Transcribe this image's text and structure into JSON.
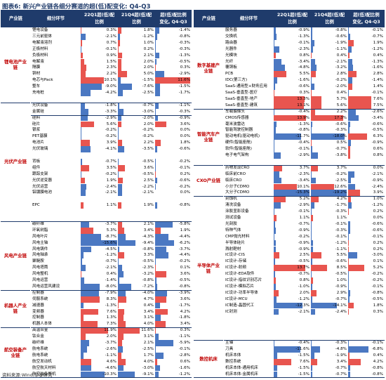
{
  "title": "图表6:  新兴产业链各细分赛道的超(低)配变化: Q4-Q3",
  "source": "资料来源:Wind,华泰研究",
  "headers": {
    "industry_chain": "产业链",
    "segment": "细分环节",
    "q22_1": "22Q1超(低)配",
    "q22_2": "比例",
    "q21_1": "21Q4超(低)配",
    "q21_2": "比例",
    "chg_1": "超(低)配比例",
    "chg_2": "变化, Q4-Q3"
  },
  "colors": {
    "header_bg": "#1f3b6b",
    "group_label": "#c00000",
    "positive_bar": "#e8554f",
    "negative_bar": "#4b78c2"
  },
  "left": {
    "groups": [
      {
        "name": "锂电池产业链",
        "start": 0,
        "count": 12
      },
      {
        "name": "光伏产业链",
        "start": 12,
        "count": 19
      },
      {
        "name": "风电产业链",
        "start": 31,
        "count": 11
      },
      {
        "name": "机器人产业链",
        "start": 42,
        "count": 6
      },
      {
        "name": "航空装备产业链",
        "start": 48,
        "count": 8
      }
    ],
    "separators_after": [
      11,
      13,
      30,
      41,
      47
    ],
    "rows": [
      {
        "n": "锂电设备",
        "a": "0.3%",
        "b": "1.8%",
        "c": "-1.4%"
      },
      {
        "n": "三元前驱体",
        "a": "-2.1%",
        "b": "-1.2%",
        "c": "-0.8%"
      },
      {
        "n": "电解液溶剂",
        "a": "0.7%",
        "b": "1.0%",
        "c": "-0.3%"
      },
      {
        "n": "正极材料",
        "a": "-0.1%",
        "b": "0.2%",
        "c": "-0.3%"
      },
      {
        "n": "负极材料",
        "a": "0.9%",
        "b": "2.1%",
        "c": "-1.3%"
      },
      {
        "n": "电解液",
        "a": "1.5%",
        "b": "2.0%",
        "c": "-0.5%"
      },
      {
        "n": "隔膜",
        "a": "2.3%",
        "b": "2.0%",
        "c": "0.3%"
      },
      {
        "n": "铜材",
        "a": "2.2%",
        "b": "5.0%",
        "c": "-2.9%"
      },
      {
        "n": "电芯与Pack",
        "a": "10.1%",
        "b": "-1.5%",
        "c": "11.6%"
      },
      {
        "n": "整车",
        "a": "-9.0%",
        "b": "-7.6%",
        "c": "-1.5%"
      },
      {
        "n": "充电桩",
        "a": "-4.2%",
        "b": "-2.5%",
        "c": "-1.7%"
      },
      {
        "n": "",
        "a": "",
        "b": "",
        "c": ""
      },
      {
        "n": "光伏设备",
        "a": "-1.8%",
        "c2": "",
        "b": "-0.7%",
        "c": "-1.1%"
      },
      {
        "n": "金属硅",
        "a": "-3.3%",
        "b": "-3.0%",
        "c": "-0.3%"
      },
      {
        "n": "硅料",
        "a": "-2.9%",
        "b": "-2.0%",
        "c": "-0.9%"
      },
      {
        "n": "硅片",
        "a": "5.6%",
        "b": "2.0%",
        "c": "3.6%"
      },
      {
        "n": "银浆",
        "a": "-0.2%",
        "b": "-0.2%",
        "c": "0.0%"
      },
      {
        "n": "PET基膜",
        "a": "-0.2%",
        "b": "-0.2%",
        "c": "0.0%"
      },
      {
        "n": "电池片",
        "a": "3.9%",
        "b": "2.2%",
        "c": "1.8%"
      },
      {
        "n": "光伏玻璃",
        "a": "-4.1%",
        "b": "-3.5%",
        "c": "-0.6%"
      },
      {
        "n": "",
        "a": "",
        "b": "",
        "c": ""
      },
      {
        "n": "背板",
        "a": "-0.7%",
        "b": "-0.5%",
        "c": "-0.2%"
      },
      {
        "n": "组件",
        "a": "3.5%",
        "b": "3.6%",
        "c": "-0.1%"
      },
      {
        "n": "跟踪支架",
        "a": "-0.2%",
        "b": "-0.5%",
        "c": "0.2%"
      },
      {
        "n": "光伏逆变器",
        "a": "1.9%",
        "b": "2.5%",
        "c": "-0.6%"
      },
      {
        "n": "光伏运营",
        "a": "-2.4%",
        "b": "-2.2%",
        "c": "-0.2%"
      },
      {
        "n": "铝镀膜电池",
        "a": "-2.1%",
        "b": "-2.1%",
        "c": "0.0%"
      },
      {
        "n": "",
        "a": "",
        "b": "",
        "c": ""
      },
      {
        "n": "EPC",
        "a": "1.1%",
        "b": "1.9%",
        "c": "-0.8%"
      },
      {
        "n": "",
        "a": "",
        "b": "",
        "c": ""
      },
      {
        "n": "",
        "a": "",
        "b": "",
        "c": ""
      },
      {
        "n": "碳纤维",
        "a": "-3.7%",
        "b": "2.1%",
        "c": "-5.8%"
      },
      {
        "n": "环氧树脂",
        "a": "5.3%",
        "b": "3.4%",
        "c": "1.9%"
      },
      {
        "n": "风电叶片",
        "a": "-8.7%",
        "b": "-4.3%",
        "c": "-4.4%"
      },
      {
        "n": "风电主轴",
        "a": "-15.6%",
        "b": "-9.4%",
        "c": "-6.2%"
      },
      {
        "n": "风电铸件",
        "a": "-4.5%",
        "b": "-0.8%",
        "c": "-3.7%"
      },
      {
        "n": "风电轴承",
        "a": "-1.2%",
        "b": "3.3%",
        "c": "-4.4%"
      },
      {
        "n": "聚醚胺",
        "a": "-0.7%",
        "b": "-0.5%",
        "c": "-0.2%"
      },
      {
        "n": "风电塔筒",
        "a": "-2.1%",
        "b": "-2.3%",
        "c": "0.1%"
      },
      {
        "n": "风电整机",
        "a": "0.4%",
        "b": "-3.2%",
        "c": "3.6%"
      },
      {
        "n": "风电运营",
        "a": "-1.4%",
        "b": "-0.8%",
        "c": "-0.5%"
      },
      {
        "n": "风电运营风建设",
        "a": "-8.0%",
        "b": "-7.2%",
        "c": "-0.8%"
      },
      {
        "n": "控制器",
        "a": "-7.9%",
        "b": "-4.0%",
        "c": "-3.9%"
      },
      {
        "n": "伺服系统",
        "a": "8.3%",
        "b": "4.7%",
        "c": "3.6%"
      },
      {
        "n": "减速器",
        "a": "-1.3%",
        "b": "0.4%",
        "c": "-1.7%"
      },
      {
        "n": "变频器",
        "a": "7.6%",
        "b": "3.4%",
        "c": "4.2%"
      },
      {
        "n": "控制器",
        "a": "1.3%",
        "b": "3.1%",
        "c": "-1.8%"
      },
      {
        "n": "机器人本体",
        "a": "7.3%",
        "b": "4.0%",
        "c": "3.4%"
      },
      {
        "n": "高温合金",
        "a": "11.9%",
        "b": "11.6%",
        "c": "0.3%"
      },
      {
        "n": "钛合金",
        "a": "2.0%",
        "b": "3.1%",
        "c": "-1.1%"
      },
      {
        "n": "碳纤维",
        "a": "-3.7%",
        "b": "2.1%",
        "c": "-5.9%"
      },
      {
        "n": "航电系统",
        "a": "-2.6%",
        "b": "-2.5%",
        "c": "-0.1%"
      },
      {
        "n": "航电系统",
        "a": "-1.1%",
        "b": "1.7%",
        "c": "-2.8%"
      },
      {
        "n": "航空发动机",
        "a": "4.6%",
        "b": "4.0%",
        "c": "0.6%"
      },
      {
        "n": "航空航天材料",
        "a": "-4.6%",
        "b": "-3.0%",
        "c": "-1.6%"
      },
      {
        "n": "航空装备整机",
        "a": "-10.3%",
        "b": "-9.1%",
        "c": "-1.2%"
      }
    ]
  },
  "right": {
    "groups": [
      {
        "name": "数字基建产业链",
        "start": 0,
        "count": 13
      },
      {
        "name": "智能汽车产业链",
        "start": 13,
        "count": 9
      },
      {
        "name": "CXO产业链",
        "start": 22,
        "count": 5
      },
      {
        "name": "半导体产业链",
        "start": 27,
        "count": 23
      },
      {
        "name": "数控机床",
        "start": 50,
        "count": 6
      }
    ],
    "separators_after": [
      12,
      21,
      26,
      49
    ],
    "rows": [
      {
        "n": "服务器",
        "a": "-0.9%",
        "b": "-0.8%",
        "c": "-0.1%"
      },
      {
        "n": "交换机",
        "a": "-1.3%",
        "b": "-0.6%",
        "c": "-0.7%"
      },
      {
        "n": "路由器",
        "a": "-0.1%",
        "b": "-1.9%",
        "c": "1.9%"
      },
      {
        "n": "光器件",
        "a": "-2.3%",
        "b": "-1.1%",
        "c": "-1.2%"
      },
      {
        "n": "光模块",
        "a": "0.8%",
        "b": "0.4%",
        "c": "0.4%"
      },
      {
        "n": "光纤",
        "a": "-3.4%",
        "b": "-2.1%",
        "c": "-1.3%"
      },
      {
        "n": "覆铜板",
        "a": "-4.8%",
        "b": "-3.2%",
        "c": "-1.6%"
      },
      {
        "n": "PCB",
        "a": "5.5%",
        "b": "2.8%",
        "c": "2.8%"
      },
      {
        "n": "IDC(第三方)",
        "a": "-1.6%",
        "b": "-0.2%",
        "c": "-1.4%"
      },
      {
        "n": "SaaS-通用型+财务应用",
        "a": "-0.6%",
        "b": "-2.0%",
        "c": "1.4%"
      },
      {
        "n": "SaaS-垂直型-医疗",
        "a": "0.3%",
        "b": "0.4%",
        "c": "-0.1%"
      },
      {
        "n": "SaaS-垂直型-地产",
        "a": "13.3%",
        "b": "5.7%",
        "c": "7.6%"
      },
      {
        "n": "SaaS-垂直型-建筑",
        "a": "13.1%",
        "b": "5.6%",
        "c": "7.5%"
      },
      {
        "n": "车载摄像头",
        "a": "-0.4%",
        "b": "2.2%",
        "c": "-2.6%"
      },
      {
        "n": "CMOS传感器",
        "a": "13.9%",
        "b": "17.3%",
        "c": "-3.4%"
      },
      {
        "n": "毫米波雷达",
        "a": "-1.3%",
        "b": "-0.6%",
        "c": "-0.6%"
      },
      {
        "n": "智能驾驶控制器",
        "a": "-0.8%",
        "b": "-0.3%",
        "c": "-0.5%"
      },
      {
        "n": "驱动电机(驱动电机)",
        "a": "-11.7%",
        "b": "-18.0%",
        "c": "6.3%"
      },
      {
        "n": "硬件(智能座舱)",
        "a": "-0.4%",
        "b": "0.5%",
        "c": "-0.9%"
      },
      {
        "n": "软件(智能座舱)",
        "a": "-0.1%",
        "b": "-0.7%",
        "c": "0.6%"
      },
      {
        "n": "电子电气架构",
        "a": "-2.9%",
        "b": "-3.8%",
        "c": "0.8%"
      },
      {
        "n": "",
        "a": "",
        "b": "",
        "c": ""
      },
      {
        "n": "药物发现CRO",
        "a": "3.7%",
        "b": "3.7%",
        "c": "0.0%"
      },
      {
        "n": "临床前CRO",
        "a": "-2.3%",
        "b": "-0.2%",
        "c": "-2.1%"
      },
      {
        "n": "临床CRO",
        "a": "-3.4%",
        "b": "-2.5%",
        "c": "-0.9%"
      },
      {
        "n": "小分子CDMO",
        "a": "10.1%",
        "b": "12.6%",
        "c": "-2.4%"
      },
      {
        "n": "大分子CDMO",
        "a": "-15.3%",
        "b": "-19.2%",
        "c": "3.9%"
      },
      {
        "n": "刻蚀机",
        "a": "5.2%",
        "b": "4.2%",
        "c": "1.0%"
      },
      {
        "n": "清洗设备",
        "a": "-2.9%",
        "b": "-1.7%",
        "c": "-1.2%"
      },
      {
        "n": "涂胶显影设备",
        "a": "-0.1%",
        "b": "-0.3%",
        "c": "0.2%"
      },
      {
        "n": "测试设备",
        "a": "1.1%",
        "b": "1.1%",
        "c": "0.0%"
      },
      {
        "n": "光刻胶",
        "a": "-0.7%",
        "b": "-0.1%",
        "c": "-0.6%"
      },
      {
        "n": "特种气体",
        "a": "-0.9%",
        "b": "-0.3%",
        "c": "-0.6%"
      },
      {
        "n": "CMP抛光材料",
        "a": "-0.2%",
        "b": "-0.1%",
        "c": "-0.1%"
      },
      {
        "n": "半导体硅片",
        "a": "-0.9%",
        "b": "-1.2%",
        "c": "0.2%"
      },
      {
        "n": "溅射靶材",
        "a": "-0.9%",
        "b": "-1.1%",
        "c": "0.2%"
      },
      {
        "n": "IC设计-CIS",
        "a": "2.5%",
        "b": "5.5%",
        "c": "-3.0%"
      },
      {
        "n": "IC设计-存储",
        "a": "-0.5%",
        "b": "-0.6%",
        "c": "0.1%"
      },
      {
        "n": "IC设计-射频",
        "a": "13.7%",
        "b": "8.5%",
        "c": "5.2%"
      },
      {
        "n": "IC设计-EDA软件",
        "a": "-0.7%",
        "b": "-0.5%",
        "c": "-0.2%"
      },
      {
        "n": "IC设计-指纹识别芯片",
        "a": "0.8%",
        "b": "1.0%",
        "c": "-0.2%"
      },
      {
        "n": "IC设计-模拟芯片",
        "a": "-1.0%",
        "b": "-0.9%",
        "c": "-0.1%"
      },
      {
        "n": "IC设计-功率半导体",
        "a": "2.0%",
        "b": "2.9%",
        "c": "-0.8%"
      },
      {
        "n": "IC设计-MCU",
        "a": "-1.2%",
        "b": "-0.7%",
        "c": "-0.5%"
      },
      {
        "n": "IC制造-晶圆代工",
        "a": "-12.3%",
        "b": "-14.1%",
        "c": "1.8%"
      },
      {
        "n": "IC封测",
        "a": "-2.1%",
        "b": "-2.4%",
        "c": "0.3%"
      },
      {
        "n": "",
        "a": "",
        "b": "",
        "c": ""
      },
      {
        "n": "",
        "a": "",
        "b": "",
        "c": ""
      },
      {
        "n": "",
        "a": "",
        "b": "",
        "c": ""
      },
      {
        "n": "",
        "a": "",
        "b": "",
        "c": ""
      },
      {
        "n": "主轴",
        "a": "-0.4%",
        "b": "-0.3%",
        "c": "-0.1%"
      },
      {
        "n": "刀具",
        "a": "-11.6%",
        "b": "-4.8%",
        "c": "-6.8%"
      },
      {
        "n": "机床本体",
        "a": "-1.5%",
        "b": "-1.9%",
        "c": "0.4%"
      },
      {
        "n": "数控系统",
        "a": "7.6%",
        "b": "3.4%",
        "c": "4.2%"
      },
      {
        "n": "机床本体-通用机床",
        "a": "-1.5%",
        "b": "-0.7%",
        "c": "-0.8%"
      },
      {
        "n": "机床本体-金属机床",
        "a": "-1.5%",
        "b": "-0.7%",
        "c": "-0.8%"
      }
    ]
  }
}
